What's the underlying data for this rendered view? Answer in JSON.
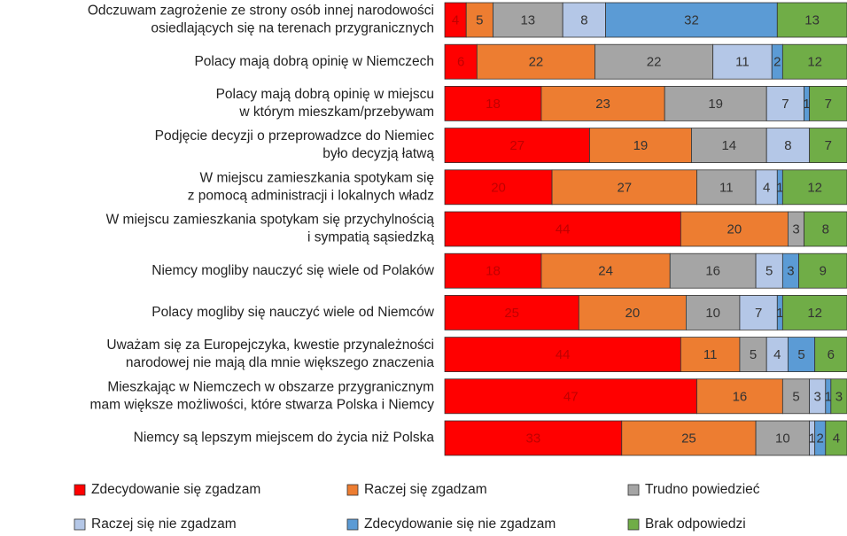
{
  "chart_data": {
    "type": "stacked-bar-horizontal",
    "categories": [
      [
        "Odczuwam zagrożenie ze strony osób innej narodowości",
        "osiedlających się na terenach przygranicznych"
      ],
      [
        "Polacy mają dobrą opinię w Niemczech"
      ],
      [
        "Polacy mają dobrą opinię w miejscu",
        "w którym mieszkam/przebywam"
      ],
      [
        "Podjęcie decyzji o przeprowadzce do Niemiec",
        "było decyzją łatwą"
      ],
      [
        "W miejscu zamieszkania spotykam się",
        "z pomocą administracji i lokalnych władz"
      ],
      [
        "W miejscu zamieszkania spotykam się przychylnością",
        "i sympatią sąsiedzką"
      ],
      [
        "Niemcy mogliby nauczyć się wiele od Polaków"
      ],
      [
        "Polacy mogliby się nauczyć wiele od Niemców"
      ],
      [
        "Uważam się za Europejczyka, kwestie przynależności",
        "narodowej nie mają dla mnie większego znaczenia"
      ],
      [
        "Mieszkając w Niemczech w obszarze przygranicznym",
        "mam większe możliwości, które stwarza Polska i Niemcy"
      ],
      [
        "Niemcy są lepszym miejscem do życia niż Polska"
      ]
    ],
    "series": [
      {
        "name": "Zdecydowanie się zgadzam",
        "color": "#ff0000",
        "label_color": "#c00000",
        "values": [
          4,
          6,
          18,
          27,
          20,
          44,
          18,
          25,
          44,
          47,
          33
        ]
      },
      {
        "name": "Raczej się zgadzam",
        "color": "#ed7d31",
        "label_color": "#333333",
        "values": [
          5,
          22,
          23,
          19,
          27,
          20,
          24,
          20,
          11,
          16,
          25
        ]
      },
      {
        "name": "Trudno powiedzieć",
        "color": "#a5a5a5",
        "label_color": "#333333",
        "values": [
          13,
          22,
          19,
          14,
          11,
          3,
          16,
          10,
          5,
          5,
          10
        ]
      },
      {
        "name": "Raczej się nie zgadzam",
        "color": "#b4c7e7",
        "label_color": "#333333",
        "values": [
          8,
          11,
          7,
          8,
          4,
          0,
          5,
          7,
          4,
          3,
          1
        ]
      },
      {
        "name": "Zdecydowanie się nie zgadzam",
        "color": "#5b9bd5",
        "label_color": "#333333",
        "values": [
          32,
          2,
          1,
          0,
          1,
          0,
          3,
          1,
          5,
          1,
          2
        ]
      },
      {
        "name": "Brak odpowiedzi",
        "color": "#70ad47",
        "label_color": "#333333",
        "values": [
          13,
          12,
          7,
          7,
          12,
          8,
          9,
          12,
          6,
          3,
          4
        ]
      }
    ],
    "xlim": [
      0,
      75
    ]
  }
}
